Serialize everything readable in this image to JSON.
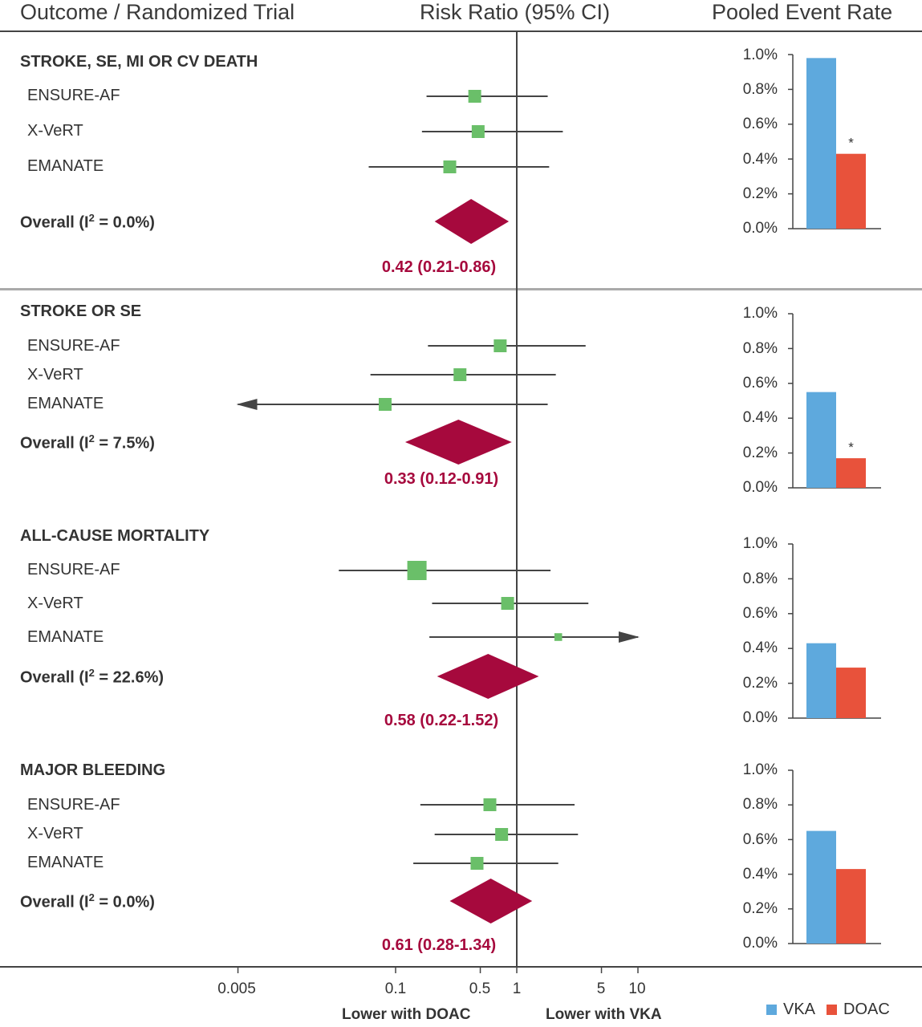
{
  "headers": {
    "col1": "Outcome / Randomized Trial",
    "col2": "Risk Ratio (95% CI)",
    "col3": "Pooled Event Rate"
  },
  "colors": {
    "vka": "#5ea9dd",
    "doac": "#e8523b",
    "square": "#6abf69",
    "diamond": "#a6093d",
    "line": "#444444"
  },
  "chart_data": [
    {
      "type": "forest",
      "scale": "log",
      "reference_line": 1,
      "x_ticks": [
        "0.005",
        "0.1",
        "0.5",
        "1",
        "5",
        "10"
      ],
      "x_tick_values": [
        0.005,
        0.1,
        0.5,
        1,
        5,
        10
      ],
      "xlim": [
        0.0035,
        30
      ],
      "direction_labels": {
        "left": "Lower with DOAC",
        "right": "Lower with VKA"
      },
      "outcomes": [
        {
          "title": "STROKE, SE, MI OR CV DEATH",
          "trials": [
            {
              "name": "ENSURE-AF",
              "rr": 0.45,
              "lo": 0.18,
              "hi": 1.8,
              "weight": 1
            },
            {
              "name": "X-VeRT",
              "rr": 0.48,
              "lo": 0.165,
              "hi": 2.4,
              "weight": 1
            },
            {
              "name": "EMANATE",
              "rr": 0.28,
              "lo": 0.06,
              "hi": 1.85,
              "weight": 1
            }
          ],
          "overall_label": "Overall (I",
          "overall_i2": " = 0.0%)",
          "overall": {
            "rr": 0.42,
            "lo": 0.21,
            "hi": 0.86
          },
          "estimate_text": "0.42 (0.21-0.86)"
        },
        {
          "title": "STROKE OR SE",
          "trials": [
            {
              "name": "ENSURE-AF",
              "rr": 0.73,
              "lo": 0.185,
              "hi": 3.7,
              "weight": 1
            },
            {
              "name": "X-VeRT",
              "rr": 0.34,
              "lo": 0.062,
              "hi": 2.1,
              "weight": 1
            },
            {
              "name": "EMANATE",
              "rr": 0.082,
              "lo": 0.005,
              "hi": 1.8,
              "weight": 1,
              "lo_arrow": true
            }
          ],
          "overall_label": "Overall (I",
          "overall_i2": " = 7.5%)",
          "overall": {
            "rr": 0.33,
            "lo": 0.12,
            "hi": 0.91
          },
          "estimate_text": "0.33 (0.12-0.91)"
        },
        {
          "title": "ALL-CAUSE MORTALITY",
          "trials": [
            {
              "name": "ENSURE-AF",
              "rr": 0.15,
              "lo": 0.034,
              "hi": 1.9,
              "weight": 1.5
            },
            {
              "name": "X-VeRT",
              "rr": 0.84,
              "lo": 0.2,
              "hi": 3.9,
              "weight": 1
            },
            {
              "name": "EMANATE",
              "rr": 2.2,
              "lo": 0.19,
              "hi": 10,
              "weight": 0.6,
              "hi_arrow": true
            }
          ],
          "overall_label": "Overall (I",
          "overall_i2": " = 22.6%)",
          "overall": {
            "rr": 0.58,
            "lo": 0.22,
            "hi": 1.52
          },
          "estimate_text": "0.58 (0.22-1.52)"
        },
        {
          "title": "MAJOR BLEEDING",
          "trials": [
            {
              "name": "ENSURE-AF",
              "rr": 0.6,
              "lo": 0.16,
              "hi": 3.0,
              "weight": 1
            },
            {
              "name": "X-VeRT",
              "rr": 0.75,
              "lo": 0.21,
              "hi": 3.2,
              "weight": 1
            },
            {
              "name": "EMANATE",
              "rr": 0.47,
              "lo": 0.14,
              "hi": 2.2,
              "weight": 1
            }
          ],
          "overall_label": "Overall (I",
          "overall_i2": " = 0.0%)",
          "overall": {
            "rr": 0.61,
            "lo": 0.28,
            "hi": 1.34
          },
          "estimate_text": "0.61 (0.28-1.34)"
        }
      ]
    },
    {
      "type": "bar",
      "title": "Pooled Event Rate",
      "yticks": [
        "0.0%",
        "0.2%",
        "0.4%",
        "0.6%",
        "0.8%",
        "1.0%"
      ],
      "ylim": [
        0,
        1.0
      ],
      "series_names": [
        "VKA",
        "DOAC"
      ],
      "panels": [
        {
          "outcome": "STROKE, SE, MI OR CV DEATH",
          "vka": 0.98,
          "doac": 0.43,
          "significant": true
        },
        {
          "outcome": "STROKE OR SE",
          "vka": 0.55,
          "doac": 0.17,
          "significant": true
        },
        {
          "outcome": "ALL-CAUSE MORTALITY",
          "vka": 0.43,
          "doac": 0.29,
          "significant": false
        },
        {
          "outcome": "MAJOR BLEEDING",
          "vka": 0.65,
          "doac": 0.43,
          "significant": false
        }
      ],
      "significance_mark": "*"
    }
  ],
  "legend": {
    "vka": "VKA",
    "doac": "DOAC"
  }
}
